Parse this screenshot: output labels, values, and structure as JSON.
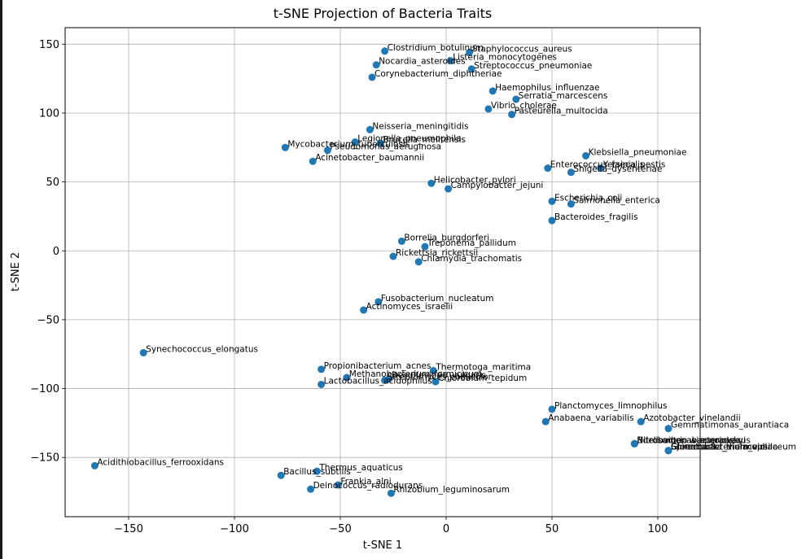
{
  "chart_data": {
    "type": "scatter",
    "title": "t-SNE Projection of Bacteria Traits",
    "xlabel": "t-SNE 1",
    "ylabel": "t-SNE 2",
    "xlim": [
      -180,
      120
    ],
    "ylim": [
      -193,
      162
    ],
    "xticks": [
      -150,
      -100,
      -50,
      0,
      50,
      100
    ],
    "yticks": [
      -150,
      -100,
      -50,
      0,
      50,
      100,
      150
    ],
    "xtick_labels": [
      "−150",
      "−100",
      "−50",
      "0",
      "50",
      "100"
    ],
    "ytick_labels": [
      "−150",
      "−100",
      "−50",
      "0",
      "50",
      "100",
      "150"
    ],
    "grid": true,
    "color": "#1f77b4",
    "points": [
      {
        "label": "Clostridium_botulinum",
        "x": -29,
        "y": 145
      },
      {
        "label": "Staphylococcus_aureus",
        "x": 11,
        "y": 144
      },
      {
        "label": "Listeria_monocytogenes",
        "x": 2,
        "y": 138
      },
      {
        "label": "Nocardia_asteroides",
        "x": -33,
        "y": 135
      },
      {
        "label": "Streptococcus_pneumoniae",
        "x": 12,
        "y": 132
      },
      {
        "label": "Corynebacterium_diphtheriae",
        "x": -35,
        "y": 126
      },
      {
        "label": "Haemophilus_influenzae",
        "x": 22,
        "y": 116
      },
      {
        "label": "Serratia_marcescens",
        "x": 33,
        "y": 110
      },
      {
        "label": "Vibrio_cholerae",
        "x": 20,
        "y": 103
      },
      {
        "label": "Pasteurella_multocida",
        "x": 31,
        "y": 99
      },
      {
        "label": "Neisseria_meningitidis",
        "x": -36,
        "y": 88
      },
      {
        "label": "Legionella_pneumophila",
        "x": -43,
        "y": 79
      },
      {
        "label": "Brucella_melitensis",
        "x": -31,
        "y": 78
      },
      {
        "label": "Mycobacterium_tuberculosis",
        "x": -76,
        "y": 75
      },
      {
        "label": "Pseudomonas_aeruginosa",
        "x": -56,
        "y": 73
      },
      {
        "label": "Klebsiella_pneumoniae",
        "x": 66,
        "y": 69
      },
      {
        "label": "Acinetobacter_baumannii",
        "x": -63,
        "y": 65
      },
      {
        "label": "Enterococcus_faecalis",
        "x": 48,
        "y": 60
      },
      {
        "label": "Yersinia_pestis",
        "x": 73,
        "y": 60
      },
      {
        "label": "Shigella_dysenteriae",
        "x": 59,
        "y": 57
      },
      {
        "label": "Helicobacter_pylori",
        "x": -7,
        "y": 49
      },
      {
        "label": "Campylobacter_jejuni",
        "x": 1,
        "y": 45
      },
      {
        "label": "Escherichia_coli",
        "x": 50,
        "y": 36
      },
      {
        "label": "Salmonella_enterica",
        "x": 59,
        "y": 34
      },
      {
        "label": "Bacteroides_fragilis",
        "x": 50,
        "y": 22
      },
      {
        "label": "Borrelia_burgdorferi",
        "x": -21,
        "y": 7
      },
      {
        "label": "Treponema_pallidum",
        "x": -10,
        "y": 3
      },
      {
        "label": "Rickettsia_rickettsii",
        "x": -25,
        "y": -4
      },
      {
        "label": "Chlamydia_trachomatis",
        "x": -13,
        "y": -8
      },
      {
        "label": "Fusobacterium_nucleatum",
        "x": -32,
        "y": -37
      },
      {
        "label": "Actinomyces_israelii",
        "x": -39,
        "y": -43
      },
      {
        "label": "Synechococcus_elongatus",
        "x": -143,
        "y": -74
      },
      {
        "label": "Propionibacterium_acnes",
        "x": -59,
        "y": -86
      },
      {
        "label": "Thermotoga_maritima",
        "x": -6,
        "y": -87
      },
      {
        "label": "Methanobacterium_formicicum",
        "x": -47,
        "y": -92
      },
      {
        "label": "Desulfovibrio_vulgaris",
        "x": -27,
        "y": -93
      },
      {
        "label": "Streptomyces_coelicolor",
        "x": -29,
        "y": -94
      },
      {
        "label": "Chlorobium_tepidum",
        "x": -5,
        "y": -95
      },
      {
        "label": "Lactobacillus_acidophilus",
        "x": -59,
        "y": -97
      },
      {
        "label": "Planctomyces_limnophilus",
        "x": 50,
        "y": -115
      },
      {
        "label": "Anabaena_variabilis",
        "x": 47,
        "y": -124
      },
      {
        "label": "Azotobacter_vinelandii",
        "x": 92,
        "y": -124
      },
      {
        "label": "Gemmatimonas_aurantiaca",
        "x": 105,
        "y": -129
      },
      {
        "label": "Nitrosomonas_europaea",
        "x": 89,
        "y": -140
      },
      {
        "label": "Nitrobacter_winogradskyi",
        "x": 89,
        "y": -140
      },
      {
        "label": "Bdellovibrio_bacteriovorus",
        "x": 89,
        "y": -140
      },
      {
        "label": "Spirochaeta_thermophila",
        "x": 105,
        "y": -145
      },
      {
        "label": "Chromobacterium_violaceum",
        "x": 105,
        "y": -145
      },
      {
        "label": "Gloeobacter_violaceus",
        "x": 105,
        "y": -145
      },
      {
        "label": "Acidithiobacillus_ferrooxidans",
        "x": -166,
        "y": -156
      },
      {
        "label": "Thermus_aquaticus",
        "x": -61,
        "y": -160
      },
      {
        "label": "Bacillus_subtilis",
        "x": -78,
        "y": -163
      },
      {
        "label": "Frankia_alni",
        "x": -51,
        "y": -170
      },
      {
        "label": "Deinococcus_radiodurans",
        "x": -64,
        "y": -173
      },
      {
        "label": "Rhizobium_leguminosarum",
        "x": -26,
        "y": -176
      }
    ]
  }
}
